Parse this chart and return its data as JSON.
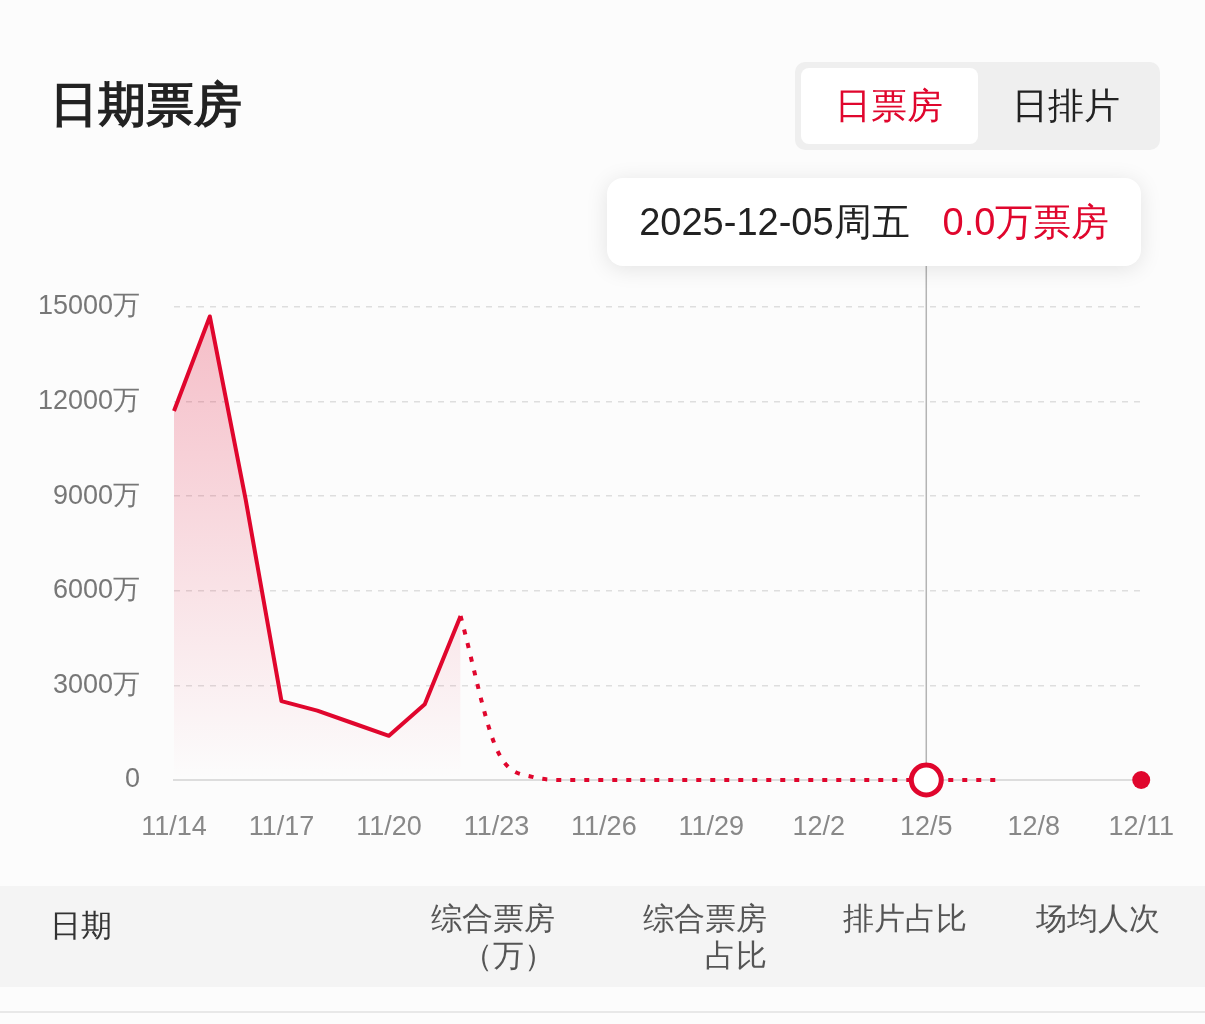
{
  "chart_data": [
    {
      "type": "line",
      "title": "日期票房",
      "annotations": [
        "2025-12-05周五",
        "0.0万票房"
      ],
      "series": [
        {
          "type": "area",
          "color": "#e0062d",
          "x": [
            "2025-11-14",
            "2025-11-15",
            "2025-11-16",
            "2025-11-17",
            "2025-11-18",
            "2025-11-19",
            "2025-11-20",
            "2025-11-21",
            "2025-11-22"
          ],
          "values": [
            11700,
            14700,
            8900,
            2500,
            2200,
            1800,
            1400,
            2400,
            5200
          ]
        },
        {
          "type": "line",
          "color": "#e0062d",
          "line_style": "dotted",
          "x": [
            "2025-11-22",
            "2025-11-23",
            "2025-11-24",
            "2025-11-25",
            "2025-11-26",
            "2025-11-27",
            "2025-11-28",
            "2025-11-29",
            "2025-11-30",
            "2025-12-01",
            "2025-12-02",
            "2025-12-03",
            "2025-12-04",
            "2025-12-05",
            "2025-12-06",
            "2025-12-07"
          ],
          "values": [
            5200,
            1000,
            100,
            0,
            0,
            0,
            0,
            0,
            0,
            0,
            0,
            0,
            0,
            0,
            0,
            0
          ]
        },
        {
          "type": "scatter",
          "color": "#e0062d",
          "marker": "circle",
          "x": [
            "2025-12-11"
          ],
          "values": [
            0
          ]
        }
      ],
      "xlim": [
        "2025-11-14",
        "2025-12-11"
      ],
      "xticks": [
        {
          "value": "2025-11-14",
          "label": "11/14"
        },
        {
          "value": "2025-11-17",
          "label": "11/17"
        },
        {
          "value": "2025-11-20",
          "label": "11/20"
        },
        {
          "value": "2025-11-23",
          "label": "11/23"
        },
        {
          "value": "2025-11-26",
          "label": "11/26"
        },
        {
          "value": "2025-11-29",
          "label": "11/29"
        },
        {
          "value": "2025-12-02",
          "label": "12/2"
        },
        {
          "value": "2025-12-05",
          "label": "12/5"
        },
        {
          "value": "2025-12-08",
          "label": "12/8"
        },
        {
          "value": "2025-12-11",
          "label": "12/11"
        }
      ],
      "ylim": [
        0,
        15000
      ],
      "yticks": [
        0,
        {
          "value": 3000,
          "label": "3000万"
        },
        {
          "value": 6000,
          "label": "6000万"
        },
        {
          "value": 9000,
          "label": "9000万"
        },
        {
          "value": 12000,
          "label": "12000万"
        },
        {
          "value": 15000,
          "label": "15000万"
        }
      ],
      "grid": "y",
      "ref_lines": [
        {
          "axis": "x",
          "value": "2025-12-05",
          "color": "#b4b4b4"
        }
      ]
    },
    {
      "type": "other",
      "annotations": [
        "日票房",
        "日排片"
      ]
    },
    {
      "type": "other",
      "annotations": [
        "日期",
        "综合票房（万）",
        "综合票房占比",
        "排片占比",
        "场均人次"
      ]
    }
  ]
}
